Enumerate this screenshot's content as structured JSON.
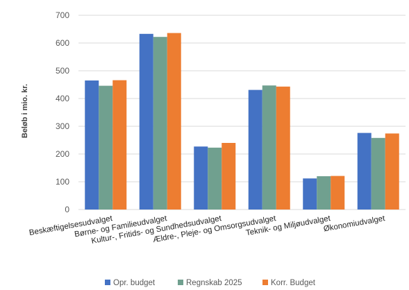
{
  "chart_data": {
    "type": "bar",
    "categories": [
      "Beskæftigelsesudvalget",
      "Børne- og Familieudvalget",
      "Kultur-, Fritids- og Sundhedsudvalget",
      "Ældre-, Pleje- og Omsorgsudvalget",
      "Teknik- og Miljøudvalget",
      "Økonomiudvalget"
    ],
    "series": [
      {
        "name": "Opr. budget",
        "color": "#4472C4",
        "values": [
          465,
          633,
          227,
          431,
          112,
          276
        ]
      },
      {
        "name": "Regnskab 2025",
        "color": "#70A08F",
        "values": [
          446,
          622,
          223,
          447,
          120,
          258
        ]
      },
      {
        "name": "Korr. Budget",
        "color": "#ED7D31",
        "values": [
          466,
          636,
          240,
          443,
          121,
          274
        ]
      }
    ],
    "xlabel": "",
    "ylabel": "Beløb i mio. kr.",
    "ylim": [
      0,
      700
    ],
    "yticks": [
      0,
      100,
      200,
      300,
      400,
      500,
      600,
      700
    ],
    "grid": true,
    "legend_position": "bottom"
  }
}
